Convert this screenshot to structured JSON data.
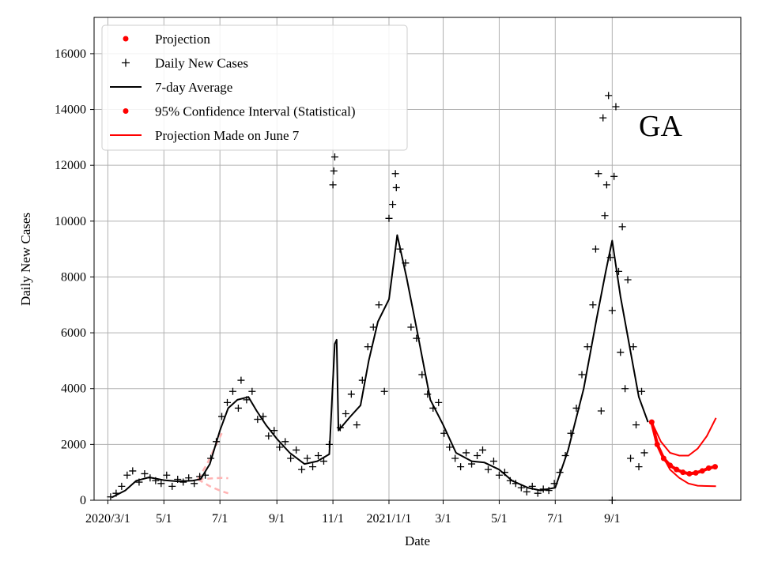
{
  "chart_data": {
    "type": "line",
    "state_label": "GA",
    "xlabel": "Date",
    "ylabel": "Daily New Cases",
    "ylim": [
      0,
      17300
    ],
    "x_range": [
      "2020-02-15",
      "2022-01-19"
    ],
    "grid": true,
    "y_ticks": [
      0,
      2000,
      4000,
      6000,
      8000,
      10000,
      12000,
      14000,
      16000
    ],
    "x_ticks": [
      {
        "date": "2020-03-01",
        "label": "2020/3/1"
      },
      {
        "date": "2020-05-01",
        "label": "5/1"
      },
      {
        "date": "2020-07-01",
        "label": "7/1"
      },
      {
        "date": "2020-09-01",
        "label": "9/1"
      },
      {
        "date": "2020-11-01",
        "label": "11/1"
      },
      {
        "date": "2021-01-01",
        "label": "2021/1/1"
      },
      {
        "date": "2021-03-01",
        "label": "3/1"
      },
      {
        "date": "2021-05-01",
        "label": "5/1"
      },
      {
        "date": "2021-07-01",
        "label": "7/1"
      },
      {
        "date": "2021-09-01",
        "label": "9/1"
      }
    ],
    "legend": {
      "position": "top-left",
      "entries": [
        {
          "label": "Projection",
          "marker": "dot",
          "color": "#ff0000"
        },
        {
          "label": "Daily New Cases",
          "marker": "plus",
          "color": "#000000"
        },
        {
          "label": "7-day Average",
          "marker": "line",
          "color": "#000000"
        },
        {
          "label": "95% Confidence Interval (Statistical)",
          "marker": "dot",
          "color": "#ff0000"
        },
        {
          "label": "Projection Made on June 7",
          "marker": "line",
          "color": "#ff0000"
        }
      ]
    },
    "series": [
      {
        "name": "7-day Average",
        "color": "#000000",
        "points": [
          [
            "2020-03-05",
            100
          ],
          [
            "2020-03-20",
            350
          ],
          [
            "2020-04-01",
            700
          ],
          [
            "2020-04-15",
            820
          ],
          [
            "2020-05-01",
            720
          ],
          [
            "2020-05-15",
            680
          ],
          [
            "2020-06-01",
            700
          ],
          [
            "2020-06-10",
            760
          ],
          [
            "2020-06-20",
            1300
          ],
          [
            "2020-07-01",
            2500
          ],
          [
            "2020-07-10",
            3300
          ],
          [
            "2020-07-20",
            3600
          ],
          [
            "2020-08-01",
            3700
          ],
          [
            "2020-08-10",
            3200
          ],
          [
            "2020-08-20",
            2700
          ],
          [
            "2020-09-01",
            2200
          ],
          [
            "2020-09-15",
            1700
          ],
          [
            "2020-10-01",
            1300
          ],
          [
            "2020-10-15",
            1400
          ],
          [
            "2020-10-28",
            1650
          ],
          [
            "2020-11-03",
            5600
          ],
          [
            "2020-11-05",
            5750
          ],
          [
            "2020-11-07",
            2500
          ],
          [
            "2020-11-20",
            3000
          ],
          [
            "2020-12-01",
            3400
          ],
          [
            "2020-12-10",
            5000
          ],
          [
            "2020-12-20",
            6400
          ],
          [
            "2021-01-01",
            7200
          ],
          [
            "2021-01-10",
            9500
          ],
          [
            "2021-01-20",
            8000
          ],
          [
            "2021-02-01",
            6000
          ],
          [
            "2021-02-15",
            3600
          ],
          [
            "2021-03-01",
            2700
          ],
          [
            "2021-03-15",
            1700
          ],
          [
            "2021-04-01",
            1400
          ],
          [
            "2021-04-15",
            1350
          ],
          [
            "2021-05-01",
            1100
          ],
          [
            "2021-05-15",
            700
          ],
          [
            "2021-06-01",
            450
          ],
          [
            "2021-06-15",
            350
          ],
          [
            "2021-07-01",
            450
          ],
          [
            "2021-07-15",
            1800
          ],
          [
            "2021-08-01",
            4000
          ],
          [
            "2021-08-15",
            6500
          ],
          [
            "2021-08-25",
            8200
          ],
          [
            "2021-09-01",
            9300
          ],
          [
            "2021-09-10",
            7300
          ],
          [
            "2021-09-20",
            5500
          ],
          [
            "2021-09-30",
            3700
          ],
          [
            "2021-10-10",
            2800
          ]
        ]
      },
      {
        "name": "Daily New Cases",
        "color": "#000000",
        "marker": "plus",
        "points": [
          [
            "2020-03-04",
            120
          ],
          [
            "2020-03-10",
            250
          ],
          [
            "2020-03-16",
            500
          ],
          [
            "2020-03-22",
            900
          ],
          [
            "2020-03-28",
            1050
          ],
          [
            "2020-04-04",
            650
          ],
          [
            "2020-04-10",
            950
          ],
          [
            "2020-04-16",
            800
          ],
          [
            "2020-04-22",
            700
          ],
          [
            "2020-04-28",
            600
          ],
          [
            "2020-05-04",
            900
          ],
          [
            "2020-05-10",
            500
          ],
          [
            "2020-05-16",
            750
          ],
          [
            "2020-05-22",
            650
          ],
          [
            "2020-05-28",
            800
          ],
          [
            "2020-06-03",
            600
          ],
          [
            "2020-06-09",
            850
          ],
          [
            "2020-06-15",
            900
          ],
          [
            "2020-06-21",
            1500
          ],
          [
            "2020-06-27",
            2100
          ],
          [
            "2020-07-03",
            3000
          ],
          [
            "2020-07-09",
            3500
          ],
          [
            "2020-07-15",
            3900
          ],
          [
            "2020-07-21",
            3300
          ],
          [
            "2020-07-24",
            4300
          ],
          [
            "2020-07-30",
            3600
          ],
          [
            "2020-08-05",
            3900
          ],
          [
            "2020-08-11",
            2900
          ],
          [
            "2020-08-17",
            3000
          ],
          [
            "2020-08-23",
            2300
          ],
          [
            "2020-08-29",
            2500
          ],
          [
            "2020-09-04",
            1900
          ],
          [
            "2020-09-10",
            2100
          ],
          [
            "2020-09-16",
            1500
          ],
          [
            "2020-09-22",
            1800
          ],
          [
            "2020-09-28",
            1100
          ],
          [
            "2020-10-04",
            1500
          ],
          [
            "2020-10-10",
            1200
          ],
          [
            "2020-10-16",
            1600
          ],
          [
            "2020-10-22",
            1400
          ],
          [
            "2020-10-28",
            2000
          ],
          [
            "2020-11-01",
            11300
          ],
          [
            "2020-11-02",
            11800
          ],
          [
            "2020-11-03",
            12300
          ],
          [
            "2020-11-09",
            2600
          ],
          [
            "2020-11-15",
            3100
          ],
          [
            "2020-11-21",
            3800
          ],
          [
            "2020-11-27",
            2700
          ],
          [
            "2020-12-03",
            4300
          ],
          [
            "2020-12-09",
            5500
          ],
          [
            "2020-12-15",
            6200
          ],
          [
            "2020-12-21",
            7000
          ],
          [
            "2020-12-27",
            3900
          ],
          [
            "2021-01-01",
            10100
          ],
          [
            "2021-01-05",
            10600
          ],
          [
            "2021-01-08",
            11700
          ],
          [
            "2021-01-09",
            11200
          ],
          [
            "2021-01-13",
            9000
          ],
          [
            "2021-01-19",
            8500
          ],
          [
            "2021-01-25",
            6200
          ],
          [
            "2021-01-31",
            5800
          ],
          [
            "2021-02-06",
            4500
          ],
          [
            "2021-02-12",
            3800
          ],
          [
            "2021-02-18",
            3300
          ],
          [
            "2021-02-24",
            3500
          ],
          [
            "2021-03-02",
            2400
          ],
          [
            "2021-03-08",
            1900
          ],
          [
            "2021-03-14",
            1500
          ],
          [
            "2021-03-20",
            1200
          ],
          [
            "2021-03-26",
            1700
          ],
          [
            "2021-04-01",
            1300
          ],
          [
            "2021-04-07",
            1600
          ],
          [
            "2021-04-13",
            1800
          ],
          [
            "2021-04-19",
            1100
          ],
          [
            "2021-04-25",
            1400
          ],
          [
            "2021-05-01",
            900
          ],
          [
            "2021-05-07",
            1000
          ],
          [
            "2021-05-13",
            700
          ],
          [
            "2021-05-19",
            600
          ],
          [
            "2021-05-25",
            450
          ],
          [
            "2021-05-31",
            300
          ],
          [
            "2021-06-06",
            500
          ],
          [
            "2021-06-12",
            250
          ],
          [
            "2021-06-18",
            400
          ],
          [
            "2021-06-24",
            350
          ],
          [
            "2021-06-30",
            600
          ],
          [
            "2021-07-06",
            1000
          ],
          [
            "2021-07-12",
            1600
          ],
          [
            "2021-07-18",
            2400
          ],
          [
            "2021-07-24",
            3300
          ],
          [
            "2021-07-30",
            4500
          ],
          [
            "2021-08-05",
            5500
          ],
          [
            "2021-08-11",
            7000
          ],
          [
            "2021-08-14",
            9000
          ],
          [
            "2021-08-17",
            11700
          ],
          [
            "2021-08-20",
            3200
          ],
          [
            "2021-08-22",
            13700
          ],
          [
            "2021-08-24",
            10200
          ],
          [
            "2021-08-26",
            11300
          ],
          [
            "2021-08-28",
            14500
          ],
          [
            "2021-08-30",
            8700
          ],
          [
            "2021-09-01",
            6800
          ],
          [
            "2021-09-03",
            11600
          ],
          [
            "2021-09-05",
            14100
          ],
          [
            "2021-09-08",
            8200
          ],
          [
            "2021-09-10",
            5300
          ],
          [
            "2021-09-12",
            9800
          ],
          [
            "2021-09-15",
            4000
          ],
          [
            "2021-09-18",
            7900
          ],
          [
            "2021-09-21",
            1500
          ],
          [
            "2021-09-24",
            5500
          ],
          [
            "2021-09-27",
            2700
          ],
          [
            "2021-09-30",
            1200
          ],
          [
            "2021-10-03",
            3900
          ],
          [
            "2021-10-06",
            1700
          ],
          [
            "2021-09-01",
            0
          ]
        ]
      },
      {
        "name": "Projection",
        "color": "#ff0000",
        "points": [
          [
            "2021-10-14",
            2800
          ],
          [
            "2021-10-20",
            2000
          ],
          [
            "2021-10-27",
            1500
          ],
          [
            "2021-11-03",
            1250
          ],
          [
            "2021-11-10",
            1100
          ],
          [
            "2021-11-17",
            1000
          ],
          [
            "2021-11-24",
            950
          ],
          [
            "2021-12-01",
            980
          ],
          [
            "2021-12-08",
            1050
          ],
          [
            "2021-12-15",
            1150
          ],
          [
            "2021-12-22",
            1200
          ]
        ]
      },
      {
        "name": "95% Confidence Interval (Statistical)",
        "color": "#ff0000",
        "upper": [
          [
            "2021-10-14",
            2800
          ],
          [
            "2021-10-24",
            2100
          ],
          [
            "2021-11-03",
            1700
          ],
          [
            "2021-11-13",
            1600
          ],
          [
            "2021-11-23",
            1600
          ],
          [
            "2021-12-03",
            1850
          ],
          [
            "2021-12-13",
            2300
          ],
          [
            "2021-12-23",
            2950
          ]
        ],
        "lower": [
          [
            "2021-10-14",
            2800
          ],
          [
            "2021-10-24",
            1700
          ],
          [
            "2021-11-03",
            1100
          ],
          [
            "2021-11-13",
            800
          ],
          [
            "2021-11-23",
            600
          ],
          [
            "2021-12-03",
            520
          ],
          [
            "2021-12-13",
            510
          ],
          [
            "2021-12-23",
            500
          ]
        ]
      },
      {
        "name": "Projection Made on June 7",
        "color": "#ffb3b3",
        "style": "dashed",
        "lines": [
          [
            [
              "2020-06-07",
              750
            ],
            [
              "2020-06-17",
              1300
            ],
            [
              "2020-06-27",
              2000
            ],
            [
              "2020-07-03",
              2400
            ]
          ],
          [
            [
              "2020-06-07",
              750
            ],
            [
              "2020-06-20",
              780
            ],
            [
              "2020-07-03",
              800
            ],
            [
              "2020-07-10",
              790
            ]
          ],
          [
            [
              "2020-06-07",
              750
            ],
            [
              "2020-06-20",
              500
            ],
            [
              "2020-07-03",
              320
            ],
            [
              "2020-07-10",
              250
            ]
          ]
        ]
      }
    ]
  }
}
